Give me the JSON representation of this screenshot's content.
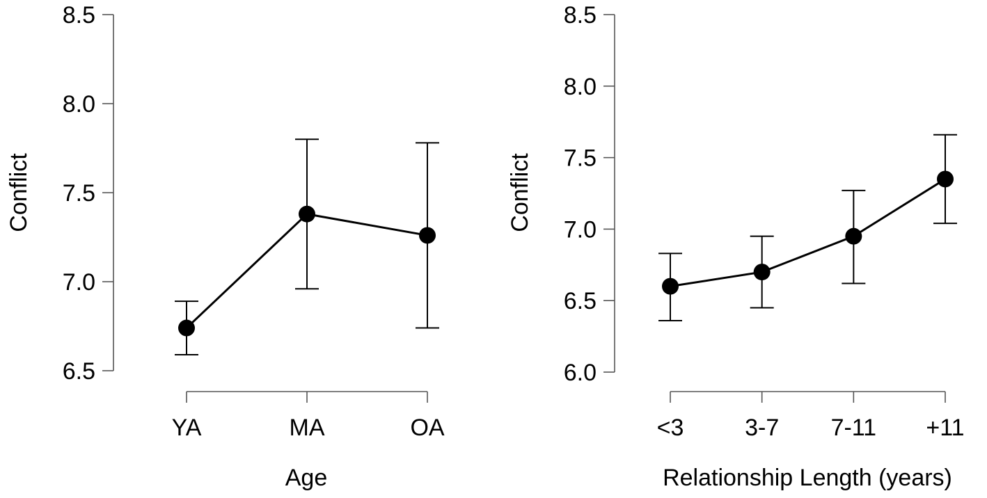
{
  "chart_data": [
    {
      "type": "line",
      "title": "",
      "xlabel": "Age",
      "ylabel": "Conflict",
      "categories": [
        "YA",
        "MA",
        "OA"
      ],
      "yticks": [
        "6.5",
        "7.0",
        "7.5",
        "8.0",
        "8.5"
      ],
      "ylim": [
        6.5,
        8.5
      ],
      "series": [
        {
          "name": "Conflict",
          "values": [
            6.74,
            7.38,
            7.26
          ],
          "lower": [
            6.59,
            6.96,
            6.74
          ],
          "upper": [
            6.89,
            7.8,
            7.78
          ]
        }
      ]
    },
    {
      "type": "line",
      "title": "",
      "xlabel": "Relationship Length (years)",
      "ylabel": "Conflict",
      "categories": [
        "<3",
        "3-7",
        "7-11",
        "+11"
      ],
      "yticks": [
        "6.0",
        "6.5",
        "7.0",
        "7.5",
        "8.0",
        "8.5"
      ],
      "ylim": [
        6.0,
        8.5
      ],
      "series": [
        {
          "name": "Conflict",
          "values": [
            6.6,
            6.7,
            6.95,
            7.35
          ],
          "lower": [
            6.36,
            6.45,
            6.62,
            7.04
          ],
          "upper": [
            6.83,
            6.95,
            7.27,
            7.66
          ]
        }
      ]
    }
  ]
}
